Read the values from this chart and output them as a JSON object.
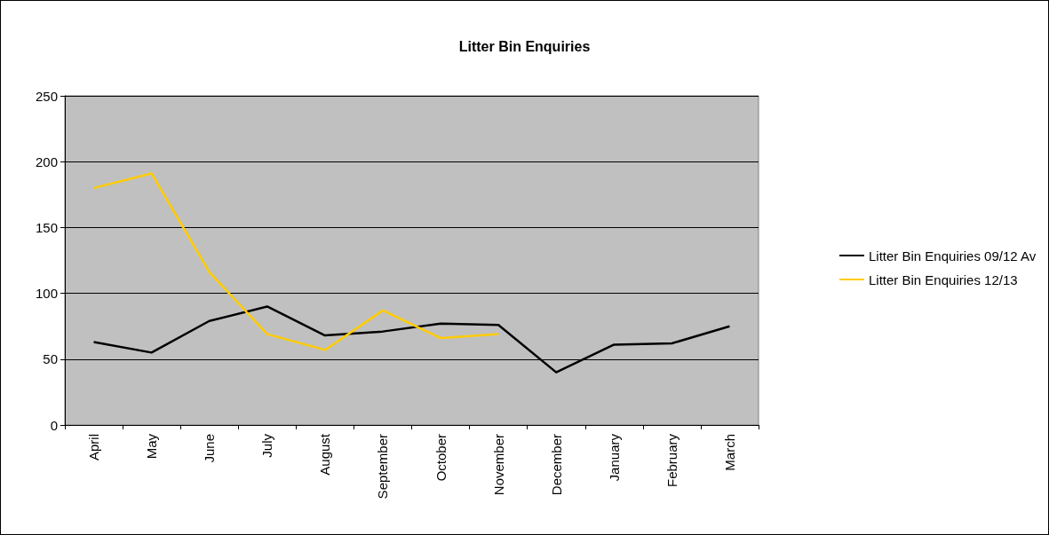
{
  "chart_data": {
    "type": "line",
    "title": "Litter Bin Enquiries",
    "categories": [
      "April",
      "May",
      "June",
      "July",
      "August",
      "September",
      "October",
      "November",
      "December",
      "January",
      "February",
      "March"
    ],
    "series": [
      {
        "name": "Litter Bin Enquiries 09/12 Av",
        "color": "#000000",
        "values": [
          63,
          55,
          79,
          90,
          68,
          71,
          77,
          76,
          40,
          61,
          62,
          75
        ]
      },
      {
        "name": "Litter Bin Enquiries 12/13",
        "color": "#ffcc00",
        "values": [
          180,
          191,
          116,
          69,
          57,
          87,
          66,
          69,
          null,
          null,
          null,
          null
        ]
      }
    ],
    "ylim": [
      0,
      250
    ],
    "yticks": [
      0,
      50,
      100,
      150,
      200,
      250
    ],
    "grid": "y",
    "legend": "right",
    "marker": "none",
    "line_style": "solid"
  }
}
